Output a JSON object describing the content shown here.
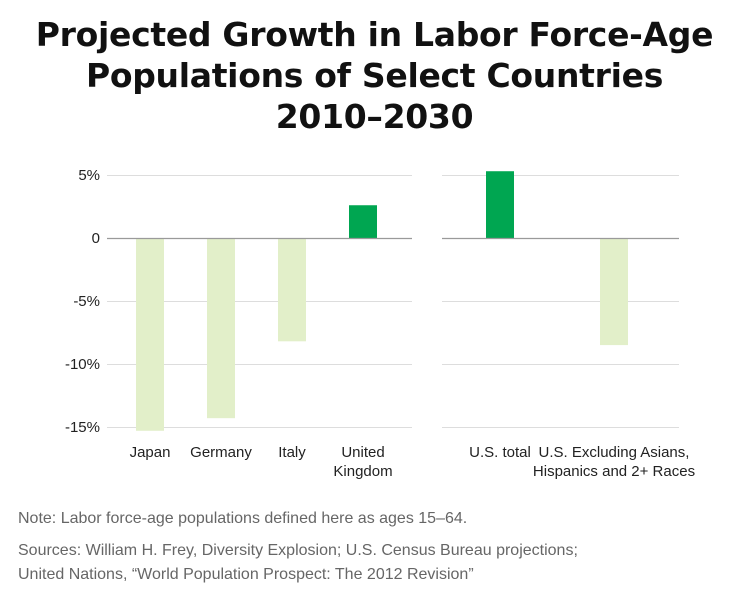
{
  "title": {
    "line1": "Projected Growth in Labor Force-Age",
    "line2": "Populations of Select Countries",
    "line3": "2010–2030"
  },
  "chart_data": [
    {
      "type": "bar",
      "categories": [
        "Japan",
        "Germany",
        "Italy",
        "United Kingdom"
      ],
      "category_lines": [
        [
          "Japan"
        ],
        [
          "Germany"
        ],
        [
          "Italy"
        ],
        [
          "United",
          "Kingdom"
        ]
      ],
      "values": [
        -15.3,
        -14.3,
        -8.2,
        2.6
      ],
      "ylim": [
        -15,
        5
      ],
      "yticks": [
        5,
        0,
        -5,
        -10,
        -15
      ],
      "ytick_labels": [
        "5%",
        "0",
        "-5%",
        "-10%",
        "-15%"
      ],
      "grid": true,
      "colors": {
        "positive": "#00a651",
        "negative": "#e2efc9"
      }
    },
    {
      "type": "bar",
      "categories": [
        "U.S. total",
        "U.S. Excluding Asians, Hispanics and 2+ Races"
      ],
      "category_lines": [
        [
          "U.S. total"
        ],
        [
          "U.S. Excluding Asians,",
          "Hispanics and 2+ Races"
        ]
      ],
      "values": [
        5.3,
        -8.5
      ],
      "ylim": [
        -15,
        5
      ],
      "grid": true,
      "colors": {
        "positive": "#00a651",
        "negative": "#e2efc9"
      }
    }
  ],
  "notes": {
    "note": "Note: Labor force-age populations defined here as ages 15–64.",
    "sources_line1": "Sources: William H. Frey, Diversity Explosion; U.S. Census Bureau projections;",
    "sources_line2": "United Nations, “World Population Prospect: The 2012 Revision”"
  }
}
